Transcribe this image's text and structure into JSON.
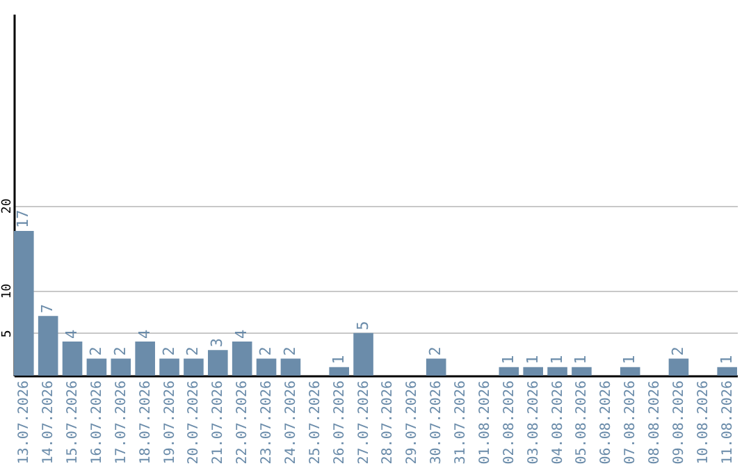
{
  "chart_data": {
    "type": "bar",
    "categories": [
      "13.07.2026",
      "14.07.2026",
      "15.07.2026",
      "16.07.2026",
      "17.07.2026",
      "18.07.2026",
      "19.07.2026",
      "20.07.2026",
      "21.07.2026",
      "22.07.2026",
      "23.07.2026",
      "24.07.2026",
      "25.07.2026",
      "26.07.2026",
      "27.07.2026",
      "28.07.2026",
      "29.07.2026",
      "30.07.2026",
      "31.07.2026",
      "01.08.2026",
      "02.08.2026",
      "03.08.2026",
      "04.08.2026",
      "05.08.2026",
      "06.08.2026",
      "07.08.2026",
      "08.08.2026",
      "09.08.2026",
      "10.08.2026",
      "11.08.2026"
    ],
    "values": [
      17,
      7,
      4,
      2,
      2,
      4,
      2,
      2,
      3,
      4,
      2,
      2,
      null,
      1,
      5,
      null,
      null,
      2,
      null,
      null,
      1,
      1,
      1,
      1,
      null,
      1,
      null,
      2,
      null,
      1
    ],
    "color": "#6b8caa",
    "ylim": [
      0,
      42.5
    ],
    "yticks": [
      5,
      10,
      20
    ],
    "grid": "y",
    "data_labels": true
  }
}
